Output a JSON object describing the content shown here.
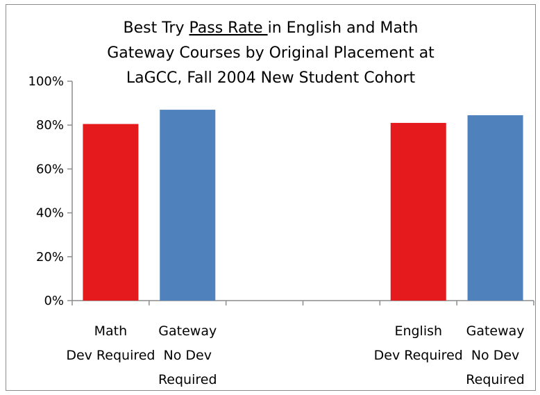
{
  "chart_data": {
    "type": "bar",
    "title": {
      "line1_pre": "Best Try ",
      "line1_underlined": "Pass Rate ",
      "line1_post": "in English and Math",
      "line2": "Gateway Courses by Original Placement at",
      "line3": "LaGCC, Fall 2004 New Student Cohort"
    },
    "xlabel": "",
    "ylabel": "",
    "ylim": [
      0,
      1
    ],
    "yticks": [
      "0%",
      "20%",
      "40%",
      "60%",
      "80%",
      "100%"
    ],
    "categories": [
      [
        "Math",
        "Dev Required"
      ],
      [
        "Gateway",
        "No Dev",
        "Required"
      ],
      [],
      [],
      [
        "English",
        "Dev Required"
      ],
      [
        "Gateway",
        "No Dev",
        "Required"
      ]
    ],
    "values": [
      0.805,
      0.87,
      null,
      null,
      0.81,
      0.845
    ],
    "colors": [
      "#e41a1c",
      "#4f81bd",
      null,
      null,
      "#e41a1c",
      "#4f81bd"
    ],
    "grid": false,
    "legend": "none"
  }
}
